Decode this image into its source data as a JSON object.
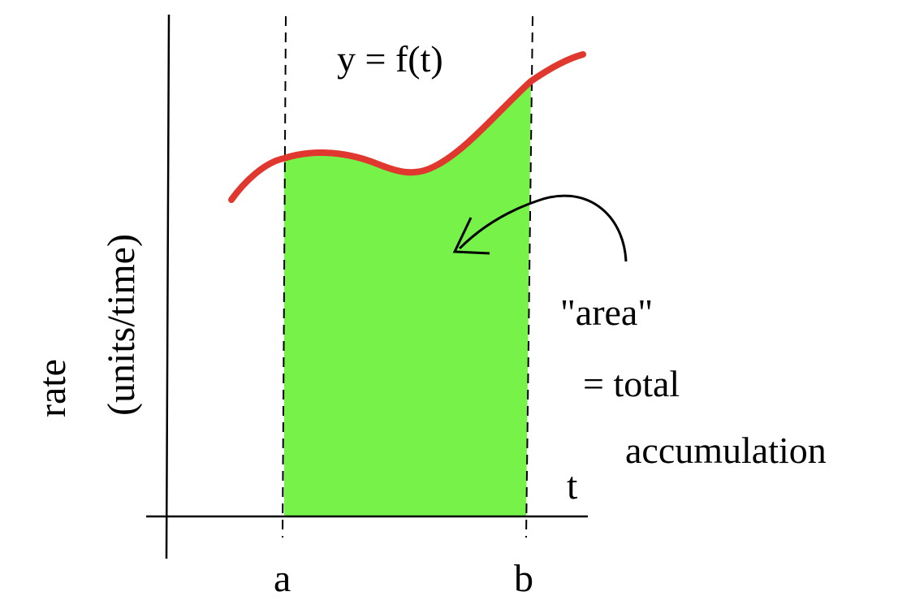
{
  "equation": "y = f(t)",
  "y_axis_label": {
    "line1": "rate",
    "line2": "(units/time)"
  },
  "x_axis_label": "t",
  "bounds": {
    "lower": "a",
    "upper": "b"
  },
  "annotation": {
    "line1": "\"area\"",
    "line2": "= total",
    "line3": "accumulation"
  },
  "colors": {
    "curve": "#e0382e",
    "area_fill": "#77f249",
    "axes": "#000000",
    "bound_lines": "#000000"
  }
}
